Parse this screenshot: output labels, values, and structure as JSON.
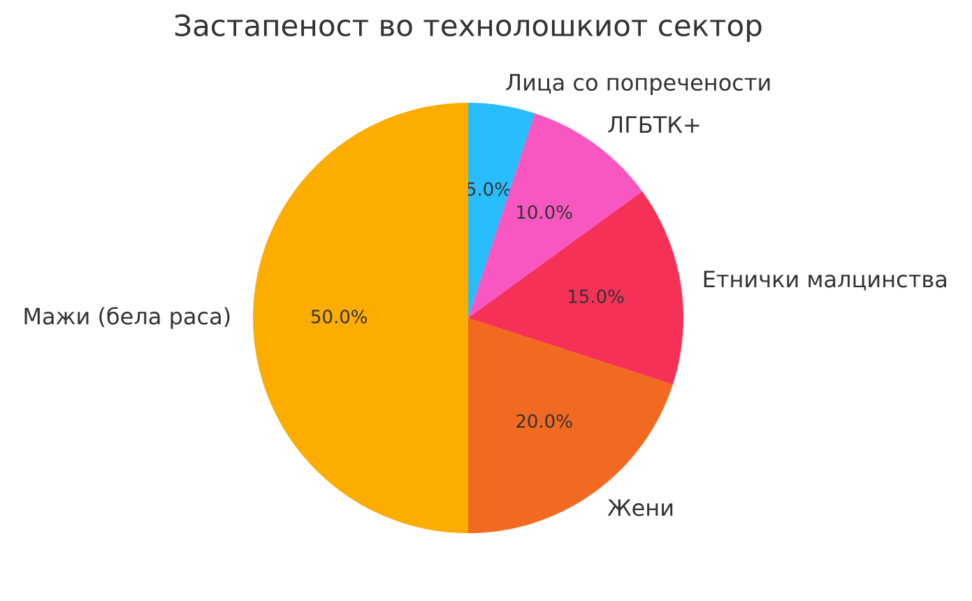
{
  "chart_data": {
    "type": "pie",
    "title": "Застапеност во технолошкиот сектор",
    "categories": [
      "Лица со попречености",
      "ЛГБТК+",
      "Етнички малцинства",
      "Жени",
      "Мажи (бела раса)"
    ],
    "values": [
      5,
      10,
      15,
      20,
      50
    ],
    "value_labels": [
      "5.0%",
      "10.0%",
      "15.0%",
      "20.0%",
      "50.0%"
    ],
    "colors": [
      "#29bdfd",
      "#f857c1",
      "#f63157",
      "#f26a21",
      "#fdac00"
    ]
  }
}
